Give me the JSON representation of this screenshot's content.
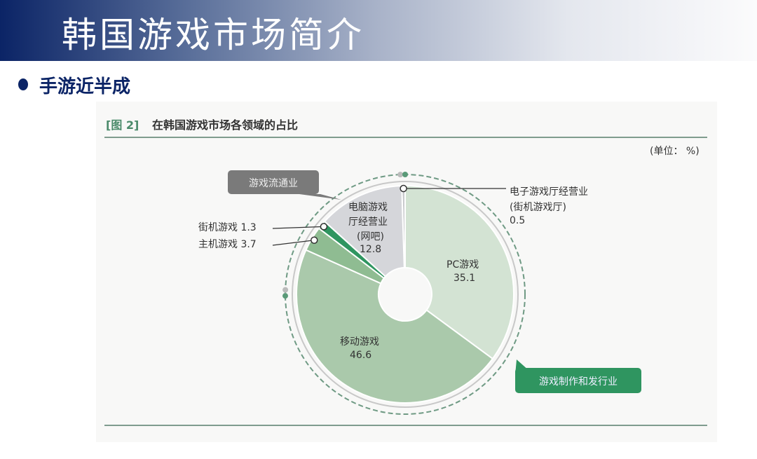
{
  "header": {
    "title": "韩国游戏市场简介"
  },
  "bullet": {
    "text": "手游近半成"
  },
  "chart_data": {
    "type": "pie",
    "donut": true,
    "figure_label": "[图 2]",
    "title": "在韩国游戏市场各领域的占比",
    "unit": "(单位： %)",
    "groups": [
      {
        "name": "游戏流通业",
        "color": "#7a7a7a"
      },
      {
        "name": "游戏制作和发行业",
        "color": "#2f9560"
      }
    ],
    "slices": [
      {
        "label": "电子游戏厅经营业 (街机游戏厅)",
        "line1": "电子游戏厅经营业",
        "line2": "(街机游戏厅)",
        "value": 0.5,
        "color": "#c9cacd"
      },
      {
        "label": "PC游戏",
        "value": 35.1,
        "color": "#d3e3d3"
      },
      {
        "label": "移动游戏",
        "value": 46.6,
        "color": "#aac9ab"
      },
      {
        "label": "主机游戏",
        "value": 3.7,
        "color": "#8fbc92"
      },
      {
        "label": "街机游戏",
        "value": 1.3,
        "color": "#2f9560"
      },
      {
        "label": "电脑游戏厅经营业 (网吧)",
        "line1": "电脑游戏",
        "line2": "厅经营业",
        "line3": "(网吧)",
        "value": 12.8,
        "color": "#d5d6da"
      }
    ],
    "value_labels": {
      "hall": "0.5",
      "pc": "35.1",
      "mobile": "46.6",
      "console": "3.7",
      "arcade": "1.3",
      "netcafe": "12.8"
    }
  }
}
